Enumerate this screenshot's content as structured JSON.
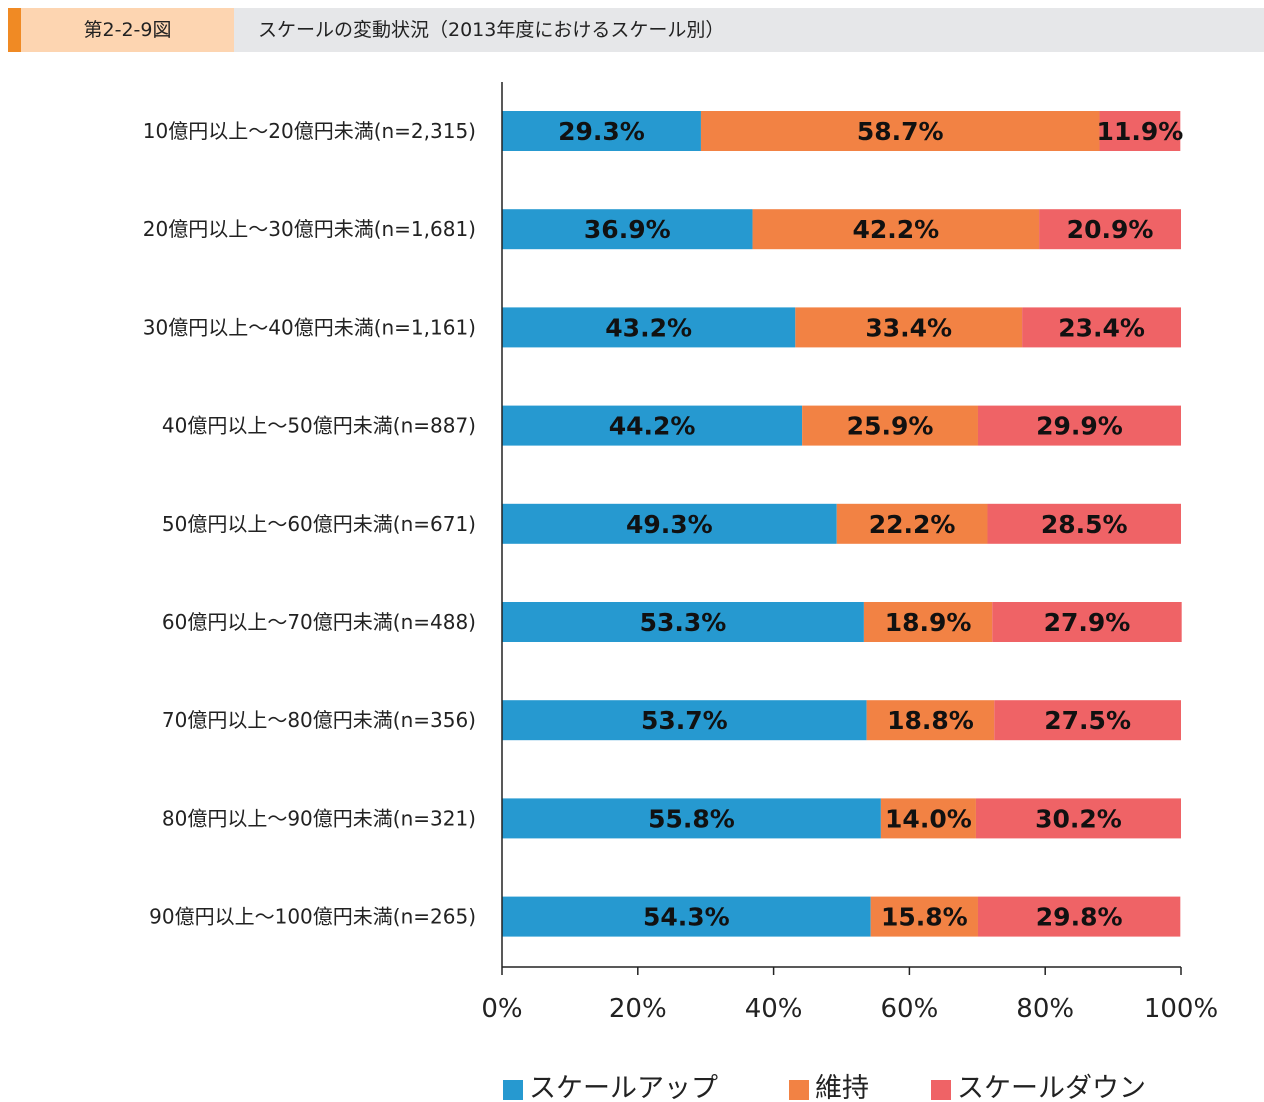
{
  "header": {
    "figure_number": "第2-2-9図",
    "title": "スケールの変動状況（2013年度におけるスケール別）"
  },
  "chart_data": {
    "type": "bar",
    "orientation": "horizontal",
    "stacked": true,
    "categories": [
      "10億円以上～20億円未満(n=2,315)",
      "20億円以上～30億円未満(n=1,681)",
      "30億円以上～40億円未満(n=1,161)",
      "40億円以上～50億円未満(n=887)",
      "50億円以上～60億円未満(n=671)",
      "60億円以上～70億円未満(n=488)",
      "70億円以上～80億円未満(n=356)",
      "80億円以上～90億円未満(n=321)",
      "90億円以上～100億円未満(n=265)"
    ],
    "series": [
      {
        "name": "スケールアップ",
        "color": "#2699d0",
        "values": [
          29.3,
          36.9,
          43.2,
          44.2,
          49.3,
          53.3,
          53.7,
          55.8,
          54.3
        ]
      },
      {
        "name": "維持",
        "color": "#f28244",
        "values": [
          58.7,
          42.2,
          33.4,
          25.9,
          22.2,
          18.9,
          18.8,
          14.0,
          15.8
        ]
      },
      {
        "name": "スケールダウン",
        "color": "#ef6366",
        "values": [
          11.9,
          20.9,
          23.4,
          29.9,
          28.5,
          27.9,
          27.5,
          30.2,
          29.8
        ]
      }
    ],
    "xlim": [
      0,
      100
    ],
    "xticks": [
      "0%",
      "20%",
      "40%",
      "60%",
      "80%",
      "100%"
    ],
    "grid": false,
    "legend_position": "bottom"
  }
}
